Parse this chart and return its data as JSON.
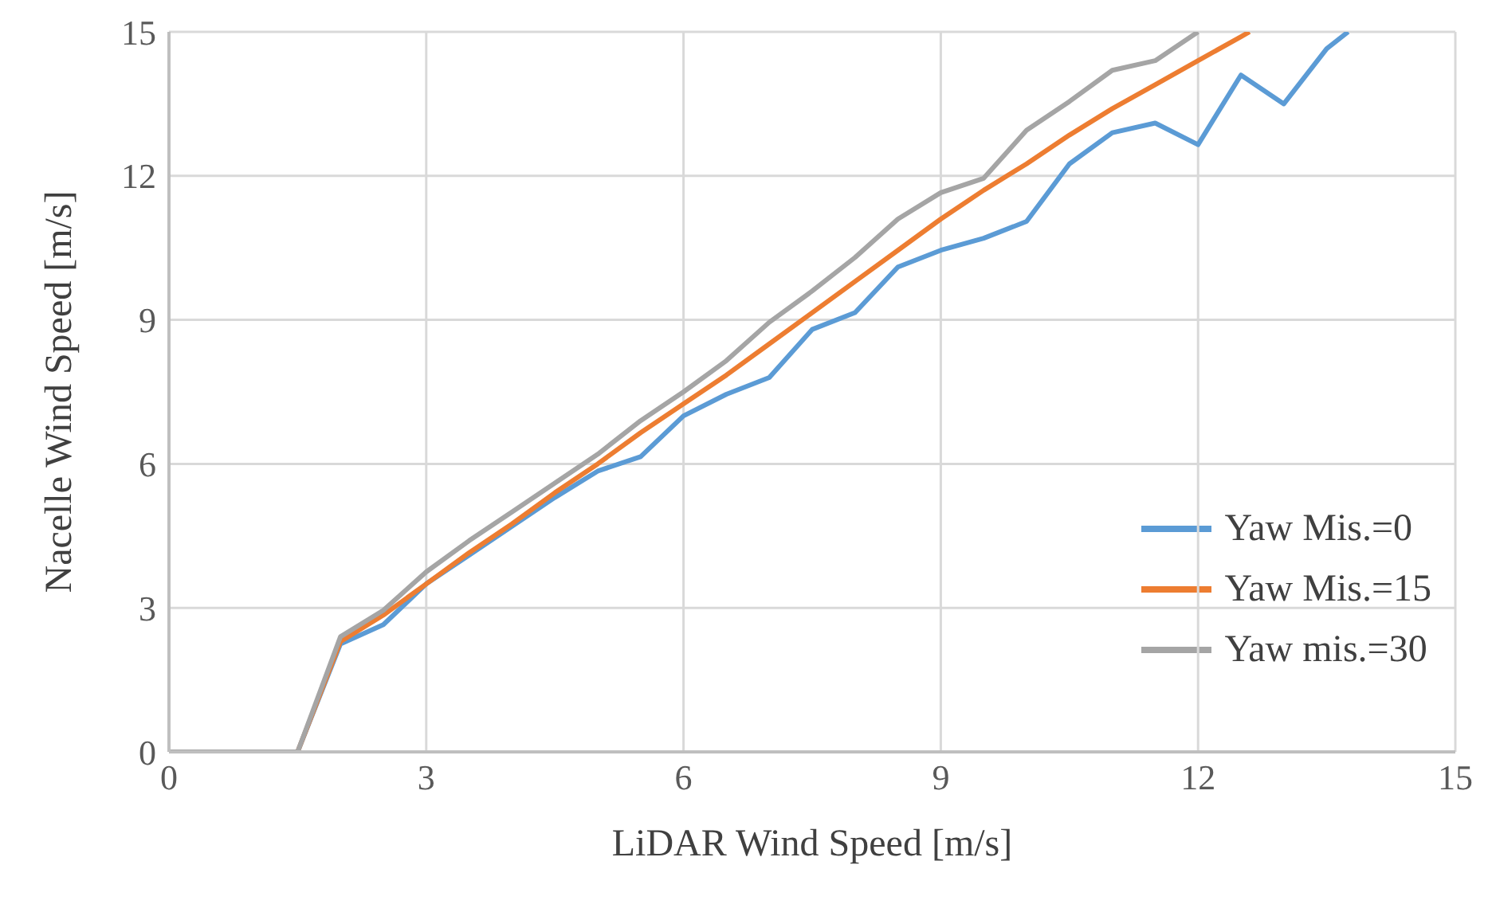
{
  "chart_data": {
    "type": "line",
    "xlabel": "LiDAR Wind Speed [m/s]",
    "ylabel": "Nacelle Wind Speed [m/s]",
    "xlim": [
      0,
      15
    ],
    "ylim": [
      0,
      15
    ],
    "xticks": [
      0,
      3,
      6,
      9,
      12,
      15
    ],
    "yticks": [
      0,
      3,
      6,
      9,
      12,
      15
    ],
    "grid": true,
    "legend": "bottom right",
    "marker": "none",
    "line_style": "solid",
    "series": [
      {
        "name": "Yaw Mis.=0",
        "color": "#5b9bd5",
        "x": [
          1.5,
          2,
          2.5,
          3,
          3.5,
          4,
          4.5,
          5,
          5.5,
          6,
          6.5,
          7,
          7.5,
          8,
          8.5,
          9,
          9.5,
          10,
          10.5,
          11,
          11.5,
          12,
          12.5,
          13,
          13.5,
          13.75
        ],
        "values": [
          0,
          2.25,
          2.65,
          3.5,
          4.1,
          4.7,
          5.3,
          5.85,
          6.15,
          7.0,
          7.45,
          7.8,
          8.8,
          9.15,
          10.1,
          10.45,
          10.7,
          11.05,
          12.25,
          12.9,
          13.1,
          12.65,
          14.1,
          13.5,
          14.65,
          15
        ]
      },
      {
        "name": "Yaw Mis.=15",
        "color": "#ed7d31",
        "x": [
          1.5,
          2,
          2.5,
          3,
          3.5,
          4,
          4.5,
          5,
          5.5,
          6,
          6.5,
          7,
          7.5,
          8,
          8.5,
          9,
          9.5,
          10,
          10.5,
          11,
          11.5,
          12,
          12.5,
          12.6
        ],
        "values": [
          0,
          2.3,
          2.85,
          3.5,
          4.15,
          4.75,
          5.4,
          6.0,
          6.65,
          7.25,
          7.85,
          8.5,
          9.15,
          9.8,
          10.45,
          11.1,
          11.7,
          12.25,
          12.85,
          13.4,
          13.9,
          14.4,
          14.9,
          15
        ]
      },
      {
        "name": "Yaw mis.=30",
        "color": "#a5a5a5",
        "x": [
          0,
          0.5,
          1,
          1.5,
          2,
          2.5,
          3,
          3.5,
          4,
          4.5,
          5,
          5.5,
          6,
          6.5,
          7,
          7.5,
          8,
          8.5,
          9,
          9.5,
          10,
          10.5,
          11,
          11.5,
          12
        ],
        "values": [
          0,
          0,
          0,
          0,
          2.4,
          2.95,
          3.75,
          4.4,
          5.0,
          5.6,
          6.2,
          6.9,
          7.5,
          8.15,
          8.95,
          9.6,
          10.3,
          11.1,
          11.65,
          11.95,
          12.95,
          13.55,
          14.2,
          14.4,
          15
        ]
      }
    ]
  }
}
